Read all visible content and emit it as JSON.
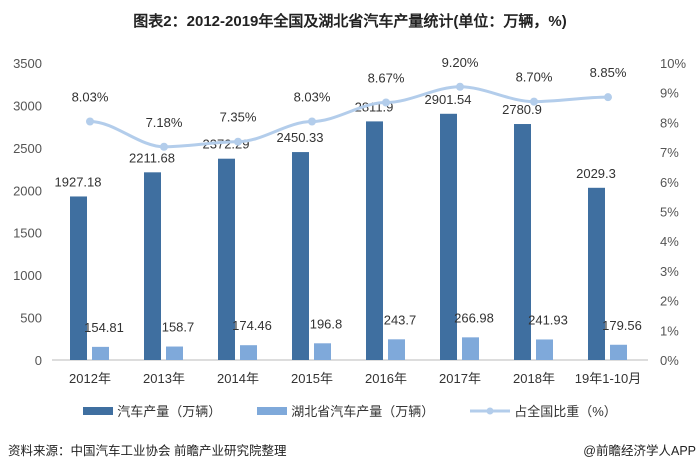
{
  "chart_data": {
    "type": "bar",
    "title": "图表2：2012-2019年全国及湖北省汽车产量统计(单位：万辆，%)",
    "categories": [
      "2012年",
      "2013年",
      "2014年",
      "2015年",
      "2016年",
      "2017年",
      "2018年",
      "19年1-10月"
    ],
    "series": [
      {
        "name": "汽车产量（万辆）",
        "type": "bar",
        "axis": "left",
        "color": "#3F6FA0",
        "values": [
          1927.18,
          2211.68,
          2372.29,
          2450.33,
          2811.9,
          2901.54,
          2780.9,
          2029.3
        ],
        "labels": [
          "1927.18",
          "2211.68",
          "2372.29",
          "2450.33",
          "2811.9",
          "2901.54",
          "2780.9",
          "2029.3"
        ]
      },
      {
        "name": "湖北省汽车产量（万辆）",
        "type": "bar",
        "axis": "left",
        "color": "#7FA9DA",
        "values": [
          154.81,
          158.7,
          174.46,
          196.8,
          243.7,
          266.98,
          241.93,
          179.56
        ],
        "labels": [
          "154.81",
          "158.7",
          "174.46",
          "196.8",
          "243.7",
          "266.98",
          "241.93",
          "179.56"
        ]
      },
      {
        "name": "占全国比重（%）",
        "type": "line",
        "axis": "right",
        "color": "#B3CDEB",
        "values": [
          8.03,
          7.18,
          7.35,
          8.03,
          8.67,
          9.2,
          8.7,
          8.85
        ],
        "labels": [
          "8.03%",
          "7.18%",
          "7.35%",
          "8.03%",
          "8.67%",
          "9.20%",
          "8.70%",
          "8.85%"
        ]
      }
    ],
    "ylim": [
      0,
      3500
    ],
    "yticks": [
      "0",
      "500",
      "1000",
      "1500",
      "2000",
      "2500",
      "3000",
      "3500"
    ],
    "y2lim": [
      0,
      10
    ],
    "y2ticks": [
      "0%",
      "1%",
      "2%",
      "3%",
      "4%",
      "5%",
      "6%",
      "7%",
      "8%",
      "9%",
      "10%"
    ],
    "legend_position": "bottom"
  },
  "footer": {
    "source": "资料来源：中国汽车工业协会 前瞻产业研究院整理",
    "brand": "@前瞻经济学人APP"
  }
}
